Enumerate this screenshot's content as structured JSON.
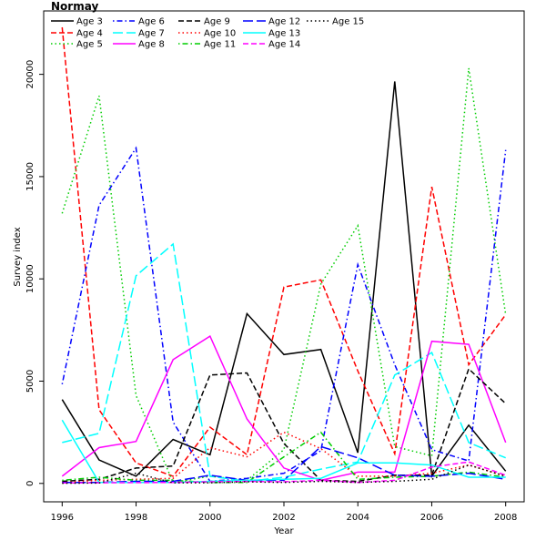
{
  "chart_data": {
    "type": "line",
    "title": "Normay",
    "xlabel": "Year",
    "ylabel": "Survey index",
    "xlim": [
      1995.5,
      2008.5
    ],
    "ylim": [
      -900,
      23100
    ],
    "x_ticks": [
      1996,
      1998,
      2000,
      2002,
      2004,
      2006,
      2008
    ],
    "y_ticks": [
      0,
      5000,
      10000,
      15000,
      20000
    ],
    "legend_position": "top-left",
    "grid": false,
    "x": [
      1996,
      1997,
      1998,
      1999,
      2000,
      2001,
      2002,
      2003,
      2004,
      2005,
      2006,
      2007,
      2008
    ],
    "series": [
      {
        "name": "Age 3",
        "color": "#000000",
        "dash": "solid",
        "values": [
          4100,
          1150,
          350,
          2150,
          1400,
          8300,
          6300,
          6550,
          1500,
          19650,
          350,
          2850,
          600
        ]
      },
      {
        "name": "Age 4",
        "color": "#ff0000",
        "dash": "dashed",
        "values": [
          22300,
          3600,
          1000,
          350,
          2750,
          1400,
          9600,
          9950,
          5500,
          1450,
          14500,
          5800,
          8250
        ]
      },
      {
        "name": "Age 5",
        "color": "#00cd00",
        "dash": "dotted",
        "values": [
          13200,
          18950,
          4300,
          50,
          350,
          150,
          1650,
          9750,
          12600,
          1800,
          1350,
          20300,
          8250
        ]
      },
      {
        "name": "Age 6",
        "color": "#0000ff",
        "dash": "dotdash",
        "values": [
          4850,
          13600,
          16400,
          3000,
          100,
          250,
          500,
          1600,
          10700,
          5800,
          1650,
          1100,
          16300
        ]
      },
      {
        "name": "Age 7",
        "color": "#00ffff",
        "dash": "longdash",
        "values": [
          2000,
          2450,
          10150,
          11700,
          350,
          100,
          300,
          700,
          1050,
          5300,
          6400,
          2000,
          1250
        ]
      },
      {
        "name": "Age 8",
        "color": "#ff00ff",
        "dash": "solid",
        "values": [
          350,
          1750,
          2050,
          6050,
          7200,
          3150,
          750,
          150,
          550,
          550,
          6950,
          6800,
          2000
        ]
      },
      {
        "name": "Age 9",
        "color": "#000000",
        "dash": "dashed",
        "values": [
          100,
          200,
          750,
          850,
          5300,
          5400,
          1950,
          150,
          100,
          400,
          400,
          5600,
          3900
        ]
      },
      {
        "name": "Age 10",
        "color": "#ff0000",
        "dash": "dotted",
        "values": [
          50,
          150,
          200,
          250,
          1750,
          1300,
          2500,
          1700,
          350,
          350,
          500,
          900,
          350
        ]
      },
      {
        "name": "Age 11",
        "color": "#00cd00",
        "dash": "dotdash",
        "values": [
          150,
          300,
          150,
          150,
          50,
          50,
          1300,
          2500,
          200,
          300,
          350,
          550,
          300
        ]
      },
      {
        "name": "Age 12",
        "color": "#0000ff",
        "dash": "longdash",
        "values": [
          50,
          50,
          100,
          100,
          400,
          150,
          150,
          1800,
          1250,
          400,
          350,
          500,
          200
        ]
      },
      {
        "name": "Age 13",
        "color": "#00ffff",
        "dash": "solid",
        "values": [
          3100,
          50,
          50,
          50,
          100,
          150,
          200,
          250,
          1000,
          1000,
          900,
          300,
          300
        ]
      },
      {
        "name": "Age 14",
        "color": "#ff00ff",
        "dash": "dashed",
        "values": [
          20,
          30,
          40,
          50,
          80,
          100,
          80,
          150,
          50,
          150,
          800,
          1050,
          400
        ]
      },
      {
        "name": "Age 15",
        "color": "#000000",
        "dash": "dotted",
        "values": [
          10,
          20,
          500,
          30,
          30,
          80,
          50,
          100,
          50,
          100,
          200,
          900,
          350
        ]
      }
    ]
  }
}
